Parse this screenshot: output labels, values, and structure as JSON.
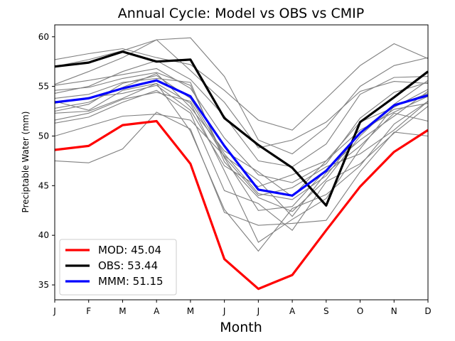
{
  "chart_data": {
    "type": "line",
    "title": "Annual Cycle: Model vs OBS vs CMIP",
    "xlabel": "Month",
    "ylabel": "Preciptable Water (mm)",
    "categories": [
      "J",
      "F",
      "M",
      "A",
      "M",
      "J",
      "J",
      "A",
      "S",
      "O",
      "N",
      "D"
    ],
    "ylim": [
      33.5,
      61.2
    ],
    "yticks": [
      35,
      40,
      45,
      50,
      55,
      60
    ],
    "legend_location": "lower-left",
    "colors": {
      "mod": "#ff0000",
      "obs": "#000000",
      "mmm": "#0000ff",
      "cmip": "#808080"
    },
    "series": [
      {
        "key": "mod",
        "name": "MOD",
        "legend_label": "MOD: 45.04",
        "color": "#ff0000",
        "values": [
          48.6,
          49.0,
          51.1,
          51.5,
          47.2,
          37.6,
          34.6,
          36.0,
          40.5,
          44.9,
          48.4,
          50.6
        ]
      },
      {
        "key": "obs",
        "name": "OBS",
        "legend_label": "OBS: 53.44",
        "color": "#000000",
        "values": [
          57.0,
          57.4,
          58.5,
          57.5,
          57.7,
          51.8,
          49.1,
          46.8,
          43.0,
          51.4,
          53.9,
          56.5
        ]
      },
      {
        "key": "mmm",
        "name": "MMM",
        "legend_label": "MMM: 51.15",
        "color": "#0000ff",
        "values": [
          53.4,
          53.8,
          54.8,
          55.6,
          54.0,
          49.0,
          44.6,
          44.0,
          46.5,
          50.3,
          53.1,
          54.1
        ]
      }
    ],
    "cmip_models": [
      {
        "values": [
          57.7,
          58.3,
          58.8,
          57.9,
          57.2,
          54.6,
          51.6,
          50.6,
          53.8,
          57.1,
          59.3,
          57.8
        ]
      },
      {
        "values": [
          57.0,
          57.7,
          58.6,
          59.7,
          59.9,
          56.0,
          49.6,
          48.2,
          50.9,
          55.0,
          57.1,
          57.9
        ]
      },
      {
        "values": [
          55.2,
          56.5,
          57.9,
          59.7,
          56.6,
          53.4,
          48.8,
          49.6,
          51.4,
          54.5,
          55.5,
          55.3
        ]
      },
      {
        "values": [
          54.3,
          55.0,
          56.5,
          57.6,
          55.7,
          52.0,
          47.5,
          46.9,
          49.2,
          54.2,
          55.9,
          56.0
        ]
      },
      {
        "values": [
          52.5,
          53.2,
          55.3,
          56.1,
          53.8,
          48.2,
          44.2,
          43.6,
          46.0,
          50.3,
          52.7,
          53.3
        ]
      },
      {
        "values": [
          52.8,
          53.4,
          54.9,
          56.3,
          52.9,
          48.5,
          46.4,
          43.9,
          47.5,
          51.4,
          52.9,
          54.7
        ]
      },
      {
        "values": [
          51.3,
          51.9,
          53.4,
          54.6,
          52.3,
          44.5,
          43.2,
          40.5,
          45.4,
          47.2,
          50.3,
          53.0
        ]
      },
      {
        "values": [
          52.3,
          52.5,
          53.8,
          55.3,
          50.5,
          42.6,
          38.4,
          42.7,
          44.1,
          47.0,
          51.2,
          53.5
        ]
      },
      {
        "values": [
          53.5,
          52.6,
          54.6,
          55.3,
          53.3,
          46.5,
          39.3,
          41.6,
          43.7,
          48.7,
          53.0,
          54.3
        ]
      },
      {
        "values": [
          50.0,
          51.0,
          52.0,
          52.2,
          51.6,
          48.0,
          45.5,
          41.9,
          46.3,
          49.0,
          52.3,
          51.5
        ]
      },
      {
        "values": [
          47.5,
          47.3,
          48.7,
          52.4,
          50.7,
          42.3,
          41.0,
          41.2,
          41.5,
          46.4,
          50.4,
          50.0
        ]
      },
      {
        "values": [
          53.8,
          54.2,
          55.4,
          55.8,
          55.4,
          47.4,
          43.8,
          42.4,
          45.6,
          50.0,
          53.2,
          55.6
        ]
      },
      {
        "values": [
          55.1,
          55.6,
          56.2,
          56.8,
          54.8,
          49.8,
          46.1,
          45.3,
          47.2,
          51.8,
          54.4,
          55.4
        ]
      },
      {
        "values": [
          54.6,
          54.9,
          55.8,
          56.4,
          55.1,
          47.8,
          42.5,
          42.9,
          46.6,
          49.6,
          52.0,
          54.5
        ]
      },
      {
        "values": [
          51.6,
          52.3,
          53.7,
          54.4,
          53.5,
          47.9,
          44.0,
          44.8,
          46.9,
          48.2,
          50.6,
          53.5
        ]
      },
      {
        "values": [
          53.3,
          53.9,
          54.3,
          55.1,
          52.6,
          47.0,
          44.9,
          46.1,
          47.5,
          50.6,
          52.4,
          54.0
        ]
      }
    ]
  }
}
